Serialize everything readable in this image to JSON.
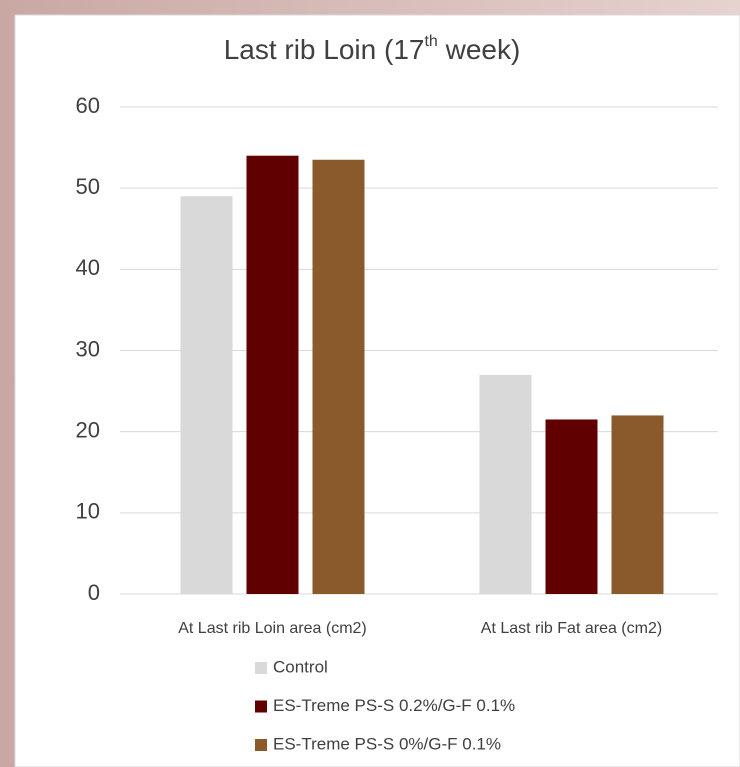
{
  "chart_data": {
    "type": "bar",
    "title": [
      "Last rib Loin (17",
      "th",
      " week)"
    ],
    "categories": [
      "At Last rib Loin area (cm2)",
      "At Last rib Fat area (cm2)"
    ],
    "series": [
      {
        "name": "Control",
        "color": "#d9d9d9",
        "values": [
          49,
          27
        ]
      },
      {
        "name": "ES-Treme PS-S 0.2%/G-F 0.1%",
        "color": "#600000",
        "values": [
          54,
          21.5
        ]
      },
      {
        "name": "ES-Treme PS-S 0%/G-F 0.1%",
        "color": "#8b5a2b",
        "values": [
          53.5,
          22
        ]
      }
    ],
    "ylim": [
      0,
      60
    ],
    "yticks": [
      0,
      10,
      20,
      30,
      40,
      50,
      60
    ],
    "grid": true,
    "legend": "bottom"
  }
}
